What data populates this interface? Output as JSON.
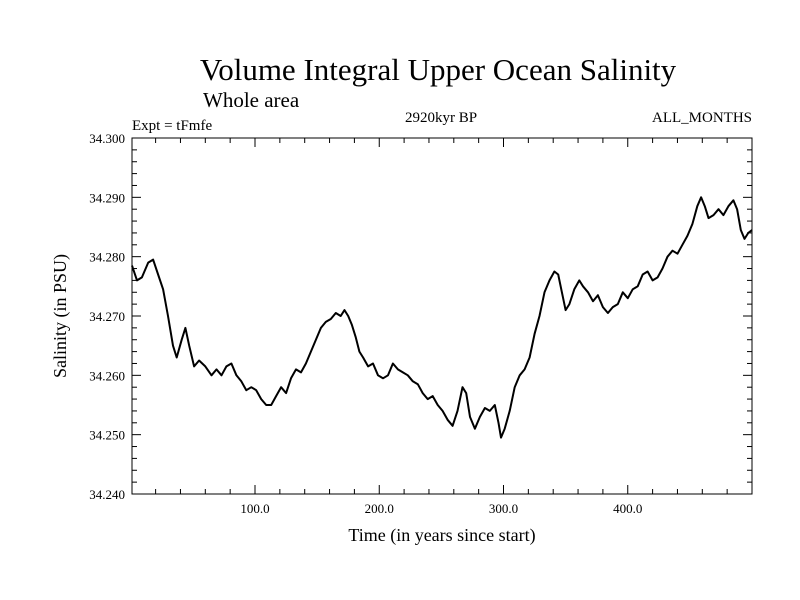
{
  "chart_data": {
    "type": "line",
    "title": "Volume Integral Upper Ocean Salinity",
    "subtitle": "Whole area",
    "experiment": "Expt = tFmfe",
    "period": "2920kyr BP",
    "months": "ALL_MONTHS",
    "xlabel": "Time (in years since start)",
    "ylabel": "Salinity (in PSU)",
    "xlim": [
      1,
      500
    ],
    "ylim": [
      34.24,
      34.3
    ],
    "x_ticks": [
      {
        "value": 100,
        "label": "100.0"
      },
      {
        "value": 200,
        "label": "200.0"
      },
      {
        "value": 300,
        "label": "300.0"
      },
      {
        "value": 400,
        "label": "400.0"
      }
    ],
    "y_ticks": [
      {
        "value": 34.24,
        "label": "34.240"
      },
      {
        "value": 34.25,
        "label": "34.250"
      },
      {
        "value": 34.26,
        "label": "34.260"
      },
      {
        "value": 34.27,
        "label": "34.270"
      },
      {
        "value": 34.28,
        "label": "34.280"
      },
      {
        "value": 34.29,
        "label": "34.290"
      },
      {
        "value": 34.3,
        "label": "34.300"
      }
    ],
    "grid": false,
    "series": [
      {
        "name": "salinity",
        "color": "#000000",
        "points": [
          [
            1,
            34.2785
          ],
          [
            5,
            34.276
          ],
          [
            9,
            34.2765
          ],
          [
            14,
            34.279
          ],
          [
            18,
            34.2795
          ],
          [
            22,
            34.277
          ],
          [
            26,
            34.2745
          ],
          [
            30,
            34.27
          ],
          [
            34,
            34.265
          ],
          [
            37,
            34.263
          ],
          [
            41,
            34.266
          ],
          [
            44,
            34.268
          ],
          [
            47,
            34.265
          ],
          [
            51,
            34.2615
          ],
          [
            55,
            34.2625
          ],
          [
            60,
            34.2615
          ],
          [
            65,
            34.26
          ],
          [
            69,
            34.261
          ],
          [
            73,
            34.26
          ],
          [
            77,
            34.2615
          ],
          [
            81,
            34.262
          ],
          [
            85,
            34.26
          ],
          [
            89,
            34.259
          ],
          [
            93,
            34.2575
          ],
          [
            97,
            34.258
          ],
          [
            101,
            34.2575
          ],
          [
            105,
            34.256
          ],
          [
            109,
            34.255
          ],
          [
            113,
            34.255
          ],
          [
            117,
            34.2565
          ],
          [
            121,
            34.258
          ],
          [
            125,
            34.257
          ],
          [
            129,
            34.2595
          ],
          [
            133,
            34.261
          ],
          [
            137,
            34.2605
          ],
          [
            141,
            34.262
          ],
          [
            145,
            34.264
          ],
          [
            149,
            34.266
          ],
          [
            153,
            34.268
          ],
          [
            157,
            34.269
          ],
          [
            161,
            34.2695
          ],
          [
            165,
            34.2705
          ],
          [
            169,
            34.27
          ],
          [
            172,
            34.271
          ],
          [
            175,
            34.27
          ],
          [
            178,
            34.2685
          ],
          [
            181,
            34.2665
          ],
          [
            184,
            34.264
          ],
          [
            187,
            34.263
          ],
          [
            191,
            34.2615
          ],
          [
            195,
            34.262
          ],
          [
            199,
            34.26
          ],
          [
            203,
            34.2595
          ],
          [
            207,
            34.26
          ],
          [
            211,
            34.262
          ],
          [
            215,
            34.261
          ],
          [
            219,
            34.2605
          ],
          [
            223,
            34.26
          ],
          [
            227,
            34.259
          ],
          [
            231,
            34.2585
          ],
          [
            235,
            34.257
          ],
          [
            239,
            34.256
          ],
          [
            243,
            34.2565
          ],
          [
            247,
            34.255
          ],
          [
            251,
            34.254
          ],
          [
            255,
            34.2525
          ],
          [
            259,
            34.2515
          ],
          [
            263,
            34.254
          ],
          [
            267,
            34.258
          ],
          [
            270,
            34.257
          ],
          [
            273,
            34.253
          ],
          [
            277,
            34.251
          ],
          [
            281,
            34.253
          ],
          [
            285,
            34.2545
          ],
          [
            289,
            34.254
          ],
          [
            293,
            34.255
          ],
          [
            296,
            34.252
          ],
          [
            298,
            34.2495
          ],
          [
            301,
            34.251
          ],
          [
            305,
            34.254
          ],
          [
            309,
            34.258
          ],
          [
            313,
            34.26
          ],
          [
            317,
            34.261
          ],
          [
            321,
            34.263
          ],
          [
            325,
            34.267
          ],
          [
            329,
            34.27
          ],
          [
            333,
            34.274
          ],
          [
            337,
            34.276
          ],
          [
            341,
            34.2775
          ],
          [
            344,
            34.277
          ],
          [
            347,
            34.274
          ],
          [
            350,
            34.271
          ],
          [
            353,
            34.272
          ],
          [
            357,
            34.2745
          ],
          [
            361,
            34.276
          ],
          [
            364,
            34.275
          ],
          [
            368,
            34.274
          ],
          [
            372,
            34.2725
          ],
          [
            376,
            34.2735
          ],
          [
            380,
            34.2715
          ],
          [
            384,
            34.2705
          ],
          [
            388,
            34.2715
          ],
          [
            392,
            34.272
          ],
          [
            396,
            34.274
          ],
          [
            400,
            34.273
          ],
          [
            404,
            34.2745
          ],
          [
            408,
            34.275
          ],
          [
            412,
            34.277
          ],
          [
            416,
            34.2775
          ],
          [
            420,
            34.276
          ],
          [
            424,
            34.2765
          ],
          [
            428,
            34.278
          ],
          [
            432,
            34.28
          ],
          [
            436,
            34.281
          ],
          [
            440,
            34.2805
          ],
          [
            444,
            34.282
          ],
          [
            448,
            34.2835
          ],
          [
            452,
            34.2855
          ],
          [
            456,
            34.2885
          ],
          [
            459,
            34.29
          ],
          [
            462,
            34.2885
          ],
          [
            465,
            34.2865
          ],
          [
            469,
            34.287
          ],
          [
            473,
            34.288
          ],
          [
            477,
            34.287
          ],
          [
            481,
            34.2885
          ],
          [
            485,
            34.2895
          ],
          [
            488,
            34.288
          ],
          [
            491,
            34.2845
          ],
          [
            494,
            34.283
          ],
          [
            497,
            34.284
          ],
          [
            500,
            34.2845
          ]
        ]
      }
    ]
  }
}
